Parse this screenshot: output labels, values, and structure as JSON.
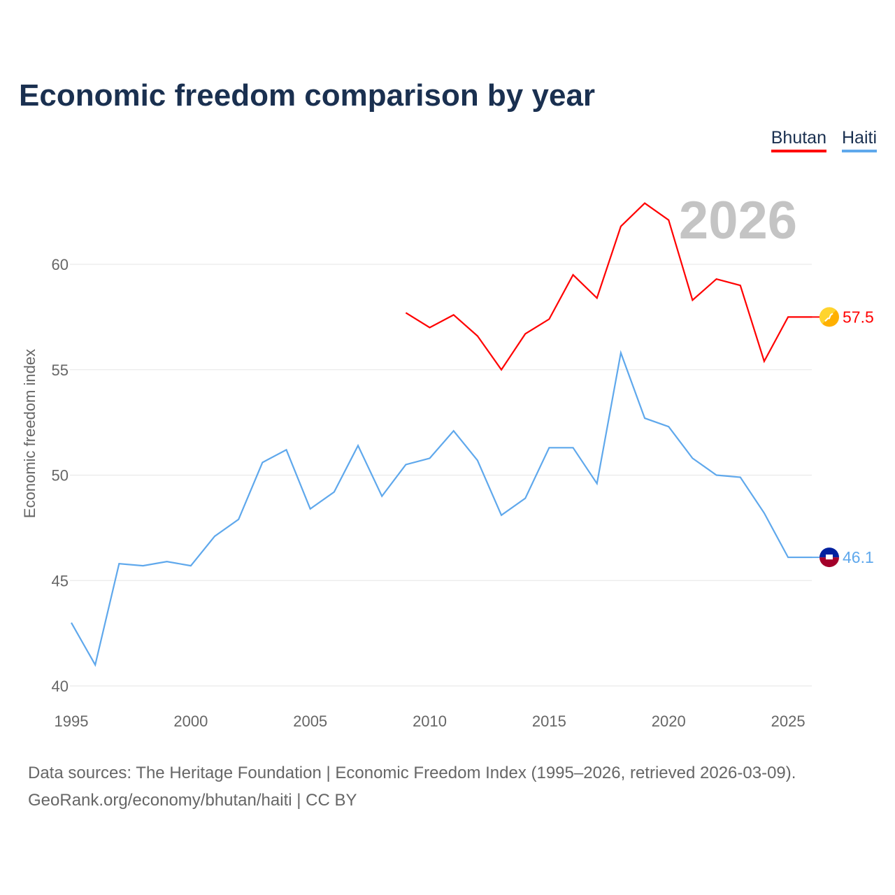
{
  "chart_data": {
    "type": "line",
    "title": "Economic freedom comparison by year",
    "xlabel": "",
    "ylabel": "Economic freedom index",
    "xlim": [
      1995,
      2026
    ],
    "ylim": [
      40,
      63
    ],
    "xticks": [
      1995,
      2000,
      2005,
      2010,
      2015,
      2020,
      2025
    ],
    "yticks": [
      40,
      45,
      50,
      55,
      60
    ],
    "grid": true,
    "legend_position": "top-right",
    "year_watermark": "2026",
    "series": [
      {
        "name": "Bhutan",
        "color": "#ff0000",
        "flag": "bhutan-flag-icon",
        "end_label": "57.5",
        "x": [
          2009,
          2010,
          2011,
          2012,
          2013,
          2014,
          2015,
          2016,
          2017,
          2018,
          2019,
          2020,
          2021,
          2022,
          2023,
          2024,
          2025,
          2026
        ],
        "y": [
          57.7,
          57.0,
          57.6,
          56.6,
          55.0,
          56.7,
          57.4,
          59.5,
          58.4,
          61.8,
          62.9,
          62.1,
          58.3,
          59.3,
          59.0,
          55.4,
          57.5,
          57.5
        ]
      },
      {
        "name": "Haiti",
        "color": "#5fa8ec",
        "flag": "haiti-flag-icon",
        "end_label": "46.1",
        "x": [
          1995,
          1996,
          1997,
          1998,
          1999,
          2000,
          2001,
          2002,
          2003,
          2004,
          2005,
          2006,
          2007,
          2008,
          2009,
          2010,
          2011,
          2012,
          2013,
          2014,
          2015,
          2016,
          2017,
          2018,
          2019,
          2020,
          2021,
          2022,
          2023,
          2024,
          2025,
          2026
        ],
        "y": [
          43.0,
          41.0,
          45.8,
          45.7,
          45.9,
          45.7,
          47.1,
          47.9,
          50.6,
          51.2,
          48.4,
          49.2,
          51.4,
          49.0,
          50.5,
          50.8,
          52.1,
          50.7,
          48.1,
          48.9,
          51.3,
          51.3,
          49.6,
          55.8,
          52.7,
          52.3,
          50.8,
          50.0,
          49.9,
          48.2,
          46.1,
          46.1
        ]
      }
    ]
  },
  "footer": {
    "line1": "Data sources: The Heritage Foundation | Economic Freedom Index (1995–2026, retrieved 2026-03-09).",
    "line2": "GeoRank.org/economy/bhutan/haiti | CC BY"
  }
}
